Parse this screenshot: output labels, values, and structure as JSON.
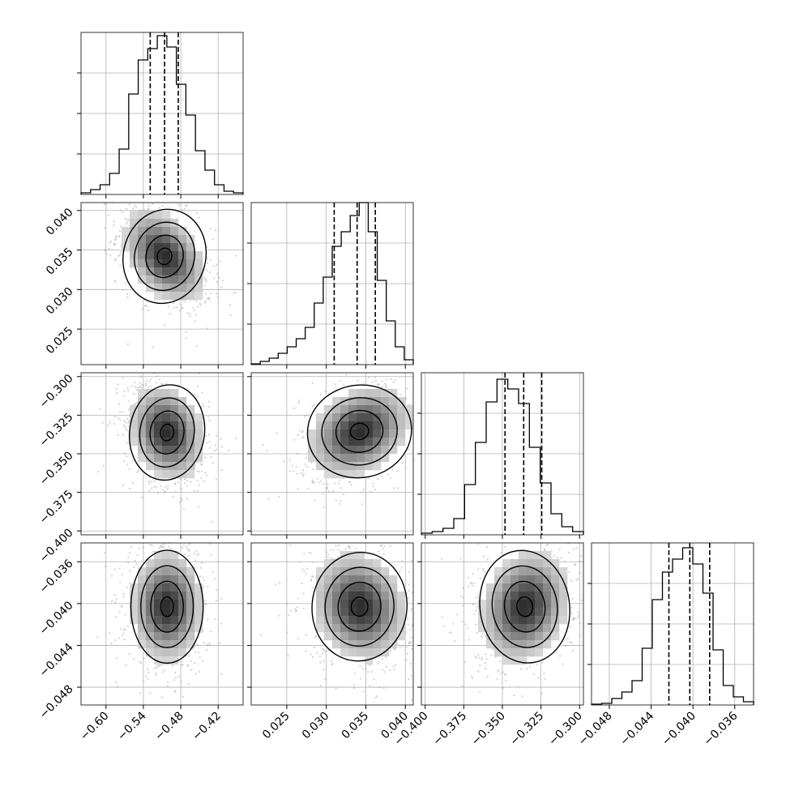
{
  "chart_data": {
    "type": "corner",
    "grid": true,
    "parameters": [
      {
        "range": [
          -0.64,
          -0.38
        ],
        "ticks": [
          -0.6,
          -0.54,
          -0.48,
          -0.42
        ],
        "tick_labels": [
          "−0.60",
          "−0.54",
          "−0.48",
          "−0.42"
        ],
        "quantiles": [
          -0.529,
          -0.506,
          -0.484
        ],
        "hist": [
          0.01,
          0.03,
          0.06,
          0.13,
          0.28,
          0.62,
          0.83,
          0.9,
          0.98,
          0.91,
          0.68,
          0.49,
          0.27,
          0.15,
          0.06,
          0.02,
          0.01
        ]
      },
      {
        "range": [
          0.0205,
          0.041
        ],
        "ticks": [
          0.025,
          0.03,
          0.035,
          0.04
        ],
        "tick_labels": [
          "0.025",
          "0.030",
          "0.035",
          "0.040"
        ],
        "quantiles": [
          0.031,
          0.0339,
          0.0362
        ],
        "hist": [
          0.005,
          0.02,
          0.04,
          0.07,
          0.11,
          0.16,
          0.23,
          0.38,
          0.54,
          0.73,
          0.82,
          0.92,
          1.0,
          0.82,
          0.52,
          0.27,
          0.11,
          0.03
        ]
      },
      {
        "range": [
          -0.4025,
          -0.2975
        ],
        "ticks": [
          -0.4,
          -0.375,
          -0.35,
          -0.325,
          -0.3
        ],
        "tick_labels": [
          "−0.400",
          "−0.375",
          "−0.350",
          "−0.325",
          "−0.300"
        ],
        "quantiles": [
          -0.3483,
          -0.3362,
          -0.3245
        ],
        "hist": [
          0.01,
          0.02,
          0.04,
          0.1,
          0.31,
          0.57,
          0.82,
          0.96,
          0.9,
          0.81,
          0.54,
          0.32,
          0.13,
          0.05,
          0.02
        ]
      },
      {
        "range": [
          -0.0497,
          -0.0342
        ],
        "ticks": [
          -0.048,
          -0.044,
          -0.04,
          -0.036
        ],
        "tick_labels": [
          "−0.048",
          "−0.044",
          "−0.040",
          "−0.036"
        ],
        "quantiles": [
          -0.0423,
          -0.0403,
          -0.0384
        ],
        "hist": [
          0.005,
          0.01,
          0.04,
          0.08,
          0.15,
          0.35,
          0.65,
          0.82,
          0.9,
          0.97,
          0.87,
          0.69,
          0.34,
          0.12,
          0.05,
          0.02
        ]
      }
    ],
    "pairs": [
      {
        "x": 0,
        "y": 1,
        "center": [
          -0.506,
          0.0342
        ],
        "spread": [
          0.033,
          0.003
        ],
        "corr": -0.4
      },
      {
        "x": 0,
        "y": 2,
        "center": [
          -0.502,
          -0.3362
        ],
        "spread": [
          0.03,
          0.0155
        ],
        "corr": -0.2
      },
      {
        "x": 1,
        "y": 2,
        "center": [
          0.0342,
          -0.3355
        ],
        "spread": [
          0.0033,
          0.015
        ],
        "corr": 0.3
      },
      {
        "x": 0,
        "y": 3,
        "center": [
          -0.502,
          -0.0403
        ],
        "spread": [
          0.029,
          0.0027
        ],
        "corr": 0.0
      },
      {
        "x": 1,
        "y": 3,
        "center": [
          0.0342,
          -0.0403
        ],
        "spread": [
          0.003,
          0.0026
        ],
        "corr": -0.15
      },
      {
        "x": 2,
        "y": 3,
        "center": [
          -0.3355,
          -0.0403
        ],
        "spread": [
          0.0145,
          0.0027
        ],
        "corr": 0.2
      }
    ]
  }
}
